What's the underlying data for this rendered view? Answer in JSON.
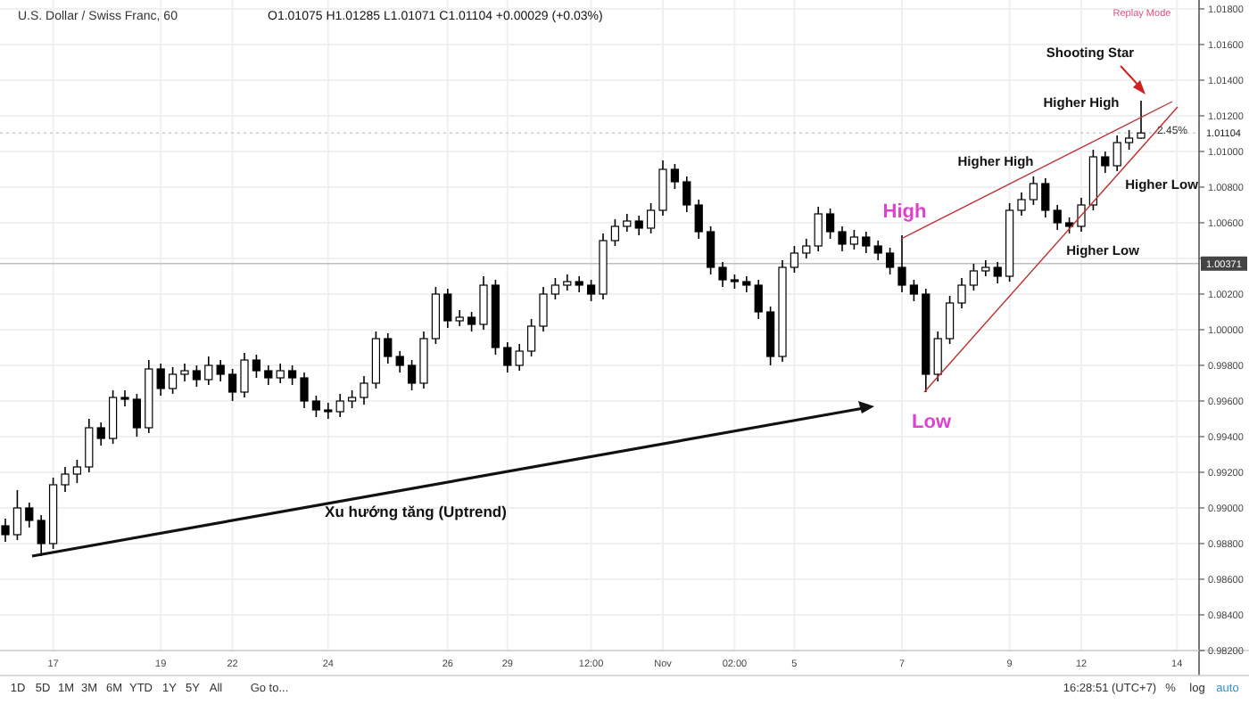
{
  "chart_data": {
    "type": "candlestick",
    "title": "U.S. Dollar / Swiss Franc, 60",
    "subtitle": "O1.01075 H1.01285 L1.01071 C1.01104 +0.00029 (+0.03%)",
    "categories": [
      null,
      null,
      null,
      null,
      "17",
      null,
      null,
      null,
      null,
      null,
      null,
      null,
      null,
      "19",
      null,
      null,
      null,
      null,
      null,
      "22",
      null,
      null,
      null,
      null,
      null,
      null,
      null,
      "24",
      null,
      null,
      null,
      null,
      null,
      null,
      null,
      null,
      null,
      "26",
      null,
      null,
      null,
      null,
      "29",
      null,
      null,
      null,
      null,
      null,
      null,
      "12:00",
      null,
      null,
      null,
      null,
      null,
      "Nov",
      null,
      null,
      null,
      null,
      null,
      "02:00",
      null,
      null,
      null,
      null,
      "5",
      null,
      null,
      null,
      null,
      null,
      null,
      null,
      null,
      "7",
      null,
      null,
      null,
      null,
      null,
      null,
      null,
      null,
      "9",
      null,
      null,
      null,
      null,
      null,
      "12",
      null,
      null,
      null,
      null,
      null,
      null,
      null,
      "14",
      null
    ],
    "color": "#000000",
    "ohlc": [
      [
        0.989,
        0.9894,
        0.9881,
        0.9885
      ],
      [
        0.9885,
        0.991,
        0.9882,
        0.99
      ],
      [
        0.99,
        0.9903,
        0.9889,
        0.9893
      ],
      [
        0.9893,
        0.9896,
        0.9873,
        0.988
      ],
      [
        0.988,
        0.9917,
        0.9877,
        0.9913
      ],
      [
        0.9913,
        0.9923,
        0.9909,
        0.9919
      ],
      [
        0.9919,
        0.9927,
        0.9914,
        0.9923
      ],
      [
        0.9923,
        0.995,
        0.992,
        0.9945
      ],
      [
        0.9945,
        0.9948,
        0.9935,
        0.9939
      ],
      [
        0.9939,
        0.9966,
        0.9936,
        0.9962
      ],
      [
        0.9962,
        0.9966,
        0.9957,
        0.9961
      ],
      [
        0.9961,
        0.9964,
        0.994,
        0.9945
      ],
      [
        0.9945,
        0.9983,
        0.9942,
        0.9978
      ],
      [
        0.9978,
        0.9981,
        0.9963,
        0.9967
      ],
      [
        0.9967,
        0.9979,
        0.9964,
        0.9975
      ],
      [
        0.9975,
        0.9981,
        0.9971,
        0.9977
      ],
      [
        0.9977,
        0.998,
        0.9968,
        0.9972
      ],
      [
        0.9972,
        0.9985,
        0.9969,
        0.998
      ],
      [
        0.998,
        0.9983,
        0.9971,
        0.9975
      ],
      [
        0.9975,
        0.9978,
        0.996,
        0.9965
      ],
      [
        0.9965,
        0.9987,
        0.9962,
        0.9983
      ],
      [
        0.9983,
        0.9986,
        0.9973,
        0.9977
      ],
      [
        0.9977,
        0.998,
        0.9969,
        0.9973
      ],
      [
        0.9973,
        0.9981,
        0.997,
        0.9977
      ],
      [
        0.9977,
        0.998,
        0.9969,
        0.9973
      ],
      [
        0.9973,
        0.9976,
        0.9956,
        0.996
      ],
      [
        0.996,
        0.9963,
        0.9951,
        0.9955
      ],
      [
        0.9955,
        0.9959,
        0.995,
        0.9954
      ],
      [
        0.9954,
        0.9964,
        0.9951,
        0.996
      ],
      [
        0.996,
        0.9966,
        0.9956,
        0.9962
      ],
      [
        0.9962,
        0.9974,
        0.9958,
        0.997
      ],
      [
        0.997,
        0.9999,
        0.9967,
        0.9995
      ],
      [
        0.9995,
        0.9998,
        0.9981,
        0.9985
      ],
      [
        0.9985,
        0.9988,
        0.9976,
        0.998
      ],
      [
        0.998,
        0.9983,
        0.9966,
        0.997
      ],
      [
        0.997,
        0.9999,
        0.9967,
        0.9995
      ],
      [
        0.9995,
        1.0024,
        0.9992,
        1.002
      ],
      [
        1.002,
        1.0023,
        1.0001,
        1.0005
      ],
      [
        1.0005,
        1.0011,
        1.0002,
        1.0007
      ],
      [
        1.0007,
        1.001,
        0.9999,
        1.0003
      ],
      [
        1.0003,
        1.003,
        1.0,
        1.0025
      ],
      [
        1.0025,
        1.0028,
        0.9986,
        0.999
      ],
      [
        0.999,
        0.9993,
        0.9976,
        0.998
      ],
      [
        0.998,
        0.9992,
        0.9977,
        0.9988
      ],
      [
        0.9988,
        1.0006,
        0.9985,
        1.0002
      ],
      [
        1.0002,
        1.0024,
        0.9999,
        1.002
      ],
      [
        1.002,
        1.0029,
        1.0017,
        1.0025
      ],
      [
        1.0025,
        1.0031,
        1.0022,
        1.0027
      ],
      [
        1.0027,
        1.003,
        1.0021,
        1.0025
      ],
      [
        1.0025,
        1.0028,
        1.0016,
        1.002
      ],
      [
        1.002,
        1.0054,
        1.0017,
        1.005
      ],
      [
        1.005,
        1.0062,
        1.0047,
        1.0058
      ],
      [
        1.0058,
        1.0065,
        1.0055,
        1.0061
      ],
      [
        1.0061,
        1.0064,
        1.0053,
        1.0057
      ],
      [
        1.0057,
        1.0071,
        1.0054,
        1.0067
      ],
      [
        1.0067,
        1.0095,
        1.0064,
        1.009
      ],
      [
        1.009,
        1.0093,
        1.0079,
        1.0083
      ],
      [
        1.0083,
        1.0086,
        1.0066,
        1.007
      ],
      [
        1.007,
        1.0073,
        1.0051,
        1.0055
      ],
      [
        1.0055,
        1.0058,
        1.0031,
        1.0035
      ],
      [
        1.0035,
        1.0038,
        1.0024,
        1.0028
      ],
      [
        1.0028,
        1.0031,
        1.0023,
        1.0027
      ],
      [
        1.0027,
        1.003,
        1.0021,
        1.0025
      ],
      [
        1.0025,
        1.0028,
        1.0006,
        1.001
      ],
      [
        1.001,
        1.0013,
        0.998,
        0.9985
      ],
      [
        0.9985,
        1.0039,
        0.9982,
        1.0035
      ],
      [
        1.0035,
        1.0047,
        1.0032,
        1.0043
      ],
      [
        1.0043,
        1.0051,
        1.004,
        1.0047
      ],
      [
        1.0047,
        1.0069,
        1.0044,
        1.0065
      ],
      [
        1.0065,
        1.0068,
        1.0051,
        1.0055
      ],
      [
        1.0055,
        1.0058,
        1.0044,
        1.0048
      ],
      [
        1.0048,
        1.0056,
        1.0045,
        1.0052
      ],
      [
        1.0052,
        1.0055,
        1.0043,
        1.0047
      ],
      [
        1.0047,
        1.005,
        1.0039,
        1.0043
      ],
      [
        1.0043,
        1.0046,
        1.0031,
        1.0035
      ],
      [
        1.0035,
        1.0053,
        1.0021,
        1.0025
      ],
      [
        1.0025,
        1.0028,
        1.0016,
        1.002
      ],
      [
        1.002,
        1.0023,
        0.9965,
        0.9975
      ],
      [
        0.9975,
        0.9999,
        0.9971,
        0.9995
      ],
      [
        0.9995,
        1.0019,
        0.9992,
        1.0015
      ],
      [
        1.0015,
        1.0029,
        1.0012,
        1.0025
      ],
      [
        1.0025,
        1.0037,
        1.0022,
        1.0033
      ],
      [
        1.0033,
        1.0039,
        1.003,
        1.0035
      ],
      [
        1.0035,
        1.0038,
        1.0026,
        1.003
      ],
      [
        1.003,
        1.0071,
        1.0027,
        1.0067
      ],
      [
        1.0067,
        1.0077,
        1.0064,
        1.0073
      ],
      [
        1.0073,
        1.0086,
        1.007,
        1.0082
      ],
      [
        1.0082,
        1.0085,
        1.0063,
        1.0067
      ],
      [
        1.0067,
        1.007,
        1.0056,
        1.006
      ],
      [
        1.006,
        1.0063,
        1.0054,
        1.0058
      ],
      [
        1.0058,
        1.0074,
        1.0055,
        1.007
      ],
      [
        1.007,
        1.0101,
        1.0067,
        1.0097
      ],
      [
        1.0097,
        1.01,
        1.0088,
        1.0092
      ],
      [
        1.0092,
        1.0109,
        1.0089,
        1.0105
      ],
      [
        1.0105,
        1.0112,
        1.0101,
        1.01075
      ],
      [
        1.01075,
        1.01285,
        1.01071,
        1.01104
      ],
      null,
      null,
      null,
      null
    ],
    "ylim": [
      0.982,
      1.0185
    ],
    "yticks": [
      {
        "value": 0.982,
        "label": "0.98200"
      },
      {
        "value": 0.984,
        "label": "0.98400"
      },
      {
        "value": 0.986,
        "label": "0.98600"
      },
      {
        "value": 0.988,
        "label": "0.98800"
      },
      {
        "value": 0.99,
        "label": "0.99000"
      },
      {
        "value": 0.992,
        "label": "0.99200"
      },
      {
        "value": 0.994,
        "label": "0.99400"
      },
      {
        "value": 0.996,
        "label": "0.99600"
      },
      {
        "value": 0.998,
        "label": "0.99800"
      },
      {
        "value": 1.0,
        "label": "1.00000"
      },
      {
        "value": 1.002,
        "label": "1.00200"
      },
      {
        "value": 1.004,
        "label": null
      },
      {
        "value": 1.006,
        "label": "1.00600"
      },
      {
        "value": 1.008,
        "label": "1.00800"
      },
      {
        "value": 1.01,
        "label": "1.01000"
      },
      {
        "value": 1.012,
        "label": "1.01200"
      },
      {
        "value": 1.014,
        "label": "1.01400"
      },
      {
        "value": 1.016,
        "label": "1.01600"
      },
      {
        "value": 1.018,
        "label": "1.01800"
      }
    ],
    "grid": true,
    "ref_lines": [
      {
        "axis": "y",
        "value": 1.00371,
        "label": "1.00371",
        "color": "#bdbdbd"
      },
      {
        "axis": "y",
        "value": 1.01104,
        "label": "1.01104",
        "color": "#cccccc",
        "line_style": "dotted"
      }
    ],
    "annotations": [
      "Shooting Star",
      "Higher High",
      "Higher High",
      "Higher Low",
      "Higher Low",
      "High",
      "Low",
      "Xu hướng tăng (Uptrend)",
      "2.45%",
      "Replay Mode",
      "1D",
      "5D",
      "1M",
      "3M",
      "6M",
      "YTD",
      "1Y",
      "5Y",
      "All",
      "Go to...",
      "16:28:51 (UTC+7)",
      "%",
      "log",
      "auto"
    ]
  }
}
